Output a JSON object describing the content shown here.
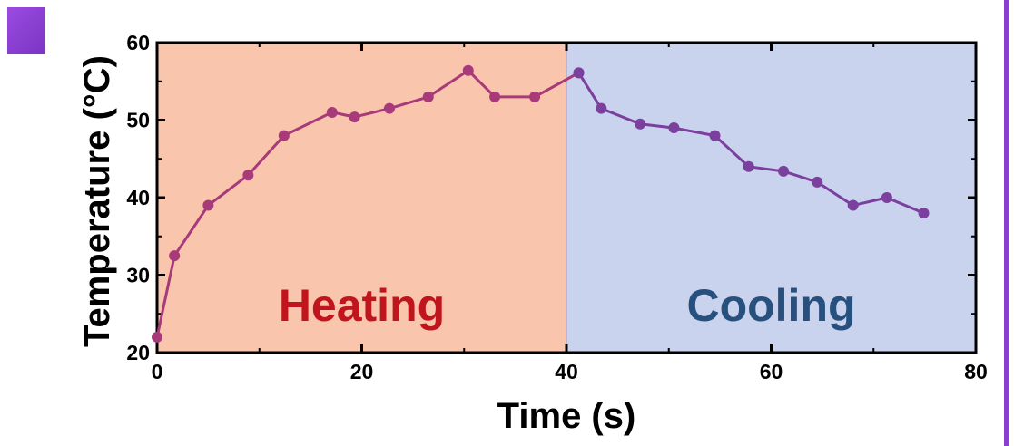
{
  "colors": {
    "heating_bg": "#f9c6ad",
    "cooling_bg": "#c9d3ee",
    "heating_text": "#c0151d",
    "cooling_text": "#27507e",
    "heating_line": "#a83a7a",
    "cooling_line": "#7b3f9e",
    "purple_accent": "#8a3fd0",
    "axis": "#000000"
  },
  "chart_data": {
    "type": "line",
    "title": "",
    "xlabel": "Time (s)",
    "ylabel": "Temperature (°C)",
    "xlim": [
      0,
      80
    ],
    "ylim": [
      20,
      60
    ],
    "xticks": [
      0,
      20,
      40,
      60,
      80
    ],
    "yticks": [
      20,
      30,
      40,
      50,
      60
    ],
    "grid": false,
    "legend": "none",
    "regions": [
      {
        "label": "Heating",
        "x_range": [
          0,
          40
        ],
        "color": "#f9c6ad",
        "text_color": "#c0151d"
      },
      {
        "label": "Cooling",
        "x_range": [
          40,
          80
        ],
        "color": "#c9d3ee",
        "text_color": "#27507e"
      }
    ],
    "series": [
      {
        "color": "#a83a7a",
        "x": [
          0,
          1.7,
          5.0,
          8.9,
          12.4,
          17.1,
          19.3,
          22.7,
          26.5,
          30.4,
          33.0,
          36.9,
          41.2
        ],
        "y": [
          22.0,
          32.5,
          39.0,
          42.9,
          48.0,
          51.0,
          50.4,
          51.5,
          53.0,
          56.4,
          53.0,
          53.0,
          56.1
        ]
      },
      {
        "color": "#7b3f9e",
        "x": [
          41.2,
          43.4,
          47.2,
          50.5,
          54.5,
          57.8,
          61.2,
          64.5,
          68.0,
          71.3,
          74.9
        ],
        "y": [
          56.1,
          51.5,
          49.5,
          49.0,
          48.0,
          44.0,
          43.4,
          42.0,
          39.0,
          40.0,
          38.0
        ]
      }
    ]
  }
}
